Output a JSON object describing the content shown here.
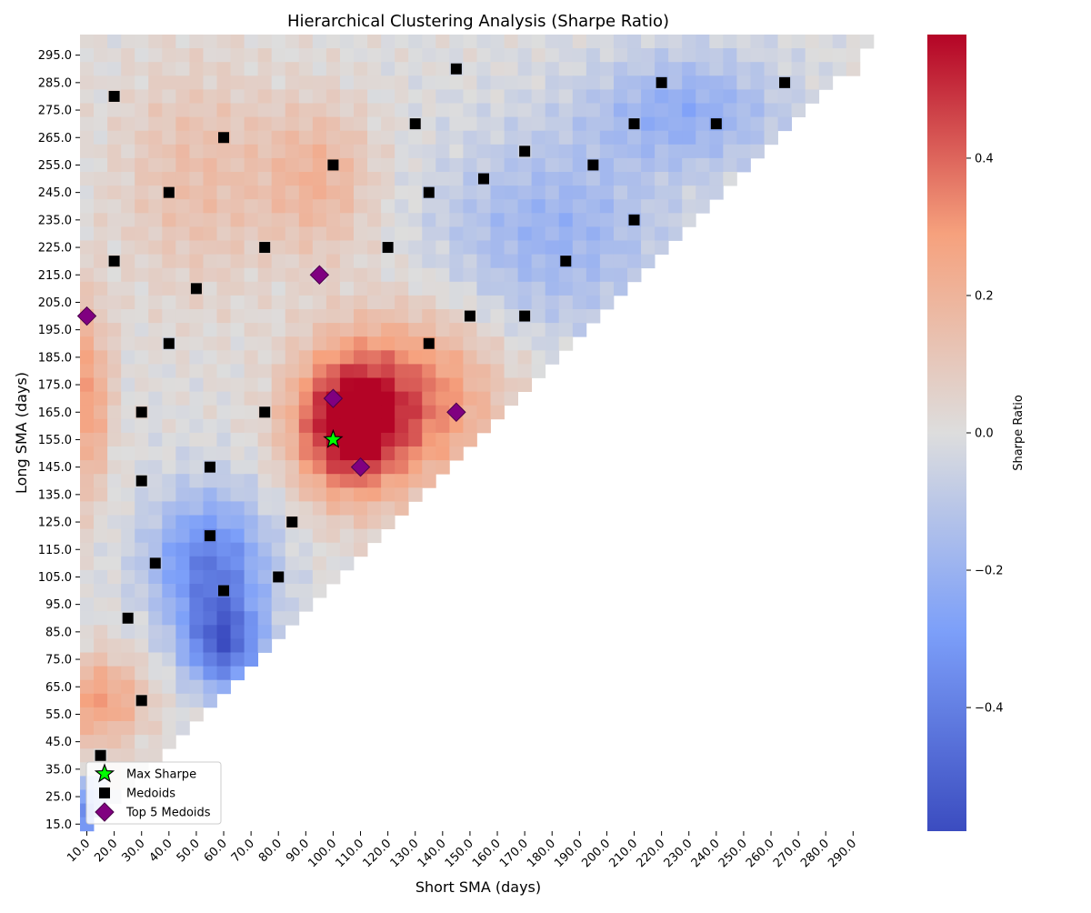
{
  "chart_data": {
    "type": "heatmap",
    "title": "Hierarchical Clustering Analysis (Sharpe Ratio)",
    "xlabel": "Short SMA (days)",
    "ylabel": "Long SMA (days)",
    "colorbar_label": "Sharpe Ratio",
    "colormap": "coolwarm",
    "color_range": [
      -0.58,
      0.58
    ],
    "colorbar_ticks": [
      "0.4",
      "0.2",
      "0.0",
      "−0.2",
      "−0.4"
    ],
    "colorbar_tick_values": [
      0.4,
      0.2,
      0.0,
      -0.2,
      -0.4
    ],
    "x_range": [
      10,
      295
    ],
    "y_range": [
      15,
      300
    ],
    "cell_size": 5,
    "x_tick_labels": [
      "10.0",
      "20.0",
      "30.0",
      "40.0",
      "50.0",
      "60.0",
      "70.0",
      "80.0",
      "90.0",
      "100.0",
      "110.0",
      "120.0",
      "130.0",
      "140.0",
      "150.0",
      "160.0",
      "170.0",
      "180.0",
      "190.0",
      "200.0",
      "210.0",
      "220.0",
      "230.0",
      "240.0",
      "250.0",
      "260.0",
      "270.0",
      "280.0",
      "290.0"
    ],
    "x_tick_values": [
      10,
      20,
      30,
      40,
      50,
      60,
      70,
      80,
      90,
      100,
      110,
      120,
      130,
      140,
      150,
      160,
      170,
      180,
      190,
      200,
      210,
      220,
      230,
      240,
      250,
      260,
      270,
      280,
      290
    ],
    "y_tick_labels": [
      "295.0",
      "285.0",
      "275.0",
      "265.0",
      "255.0",
      "245.0",
      "235.0",
      "225.0",
      "215.0",
      "205.0",
      "195.0",
      "185.0",
      "175.0",
      "165.0",
      "155.0",
      "145.0",
      "135.0",
      "125.0",
      "115.0",
      "105.0",
      "95.0",
      "85.0",
      "75.0",
      "65.0",
      "55.0",
      "45.0",
      "35.0",
      "25.0",
      "15.0"
    ],
    "y_tick_values": [
      295,
      285,
      275,
      265,
      255,
      245,
      235,
      225,
      215,
      205,
      195,
      185,
      175,
      165,
      155,
      145,
      135,
      125,
      115,
      105,
      95,
      85,
      75,
      65,
      55,
      45,
      35,
      25,
      15
    ],
    "region_note_omitted": "",
    "hotspots": [
      {
        "x": 105,
        "y": 160,
        "v": 0.55,
        "sx": 14,
        "sy": 18
      },
      {
        "x": 130,
        "y": 170,
        "v": 0.35,
        "sx": 22,
        "sy": 22
      },
      {
        "x": 10,
        "y": 170,
        "v": 0.3,
        "sx": 6,
        "sy": 25
      },
      {
        "x": 15,
        "y": 60,
        "v": 0.28,
        "sx": 12,
        "sy": 12
      },
      {
        "x": 55,
        "y": 110,
        "v": -0.4,
        "sx": 15,
        "sy": 18
      },
      {
        "x": 60,
        "y": 80,
        "v": -0.45,
        "sx": 10,
        "sy": 12
      },
      {
        "x": 180,
        "y": 230,
        "v": -0.2,
        "sx": 30,
        "sy": 25
      },
      {
        "x": 230,
        "y": 275,
        "v": -0.22,
        "sx": 25,
        "sy": 15
      },
      {
        "x": 50,
        "y": 250,
        "v": 0.15,
        "sx": 20,
        "sy": 30
      },
      {
        "x": 95,
        "y": 250,
        "v": 0.2,
        "sx": 15,
        "sy": 20
      },
      {
        "x": 10,
        "y": 20,
        "v": -0.35,
        "sx": 5,
        "sy": 8
      }
    ],
    "series": [
      {
        "name": "Max Sharpe",
        "marker": "star",
        "color": "#00ff00",
        "points": [
          {
            "x": 100,
            "y": 155
          }
        ]
      },
      {
        "name": "Medoids",
        "marker": "square",
        "color": "#000000",
        "points": [
          {
            "x": 15,
            "y": 40
          },
          {
            "x": 30,
            "y": 60
          },
          {
            "x": 25,
            "y": 90
          },
          {
            "x": 60,
            "y": 100
          },
          {
            "x": 35,
            "y": 110
          },
          {
            "x": 55,
            "y": 120
          },
          {
            "x": 30,
            "y": 140
          },
          {
            "x": 55,
            "y": 145
          },
          {
            "x": 80,
            "y": 105
          },
          {
            "x": 85,
            "y": 125
          },
          {
            "x": 30,
            "y": 165
          },
          {
            "x": 75,
            "y": 165
          },
          {
            "x": 40,
            "y": 190
          },
          {
            "x": 50,
            "y": 210
          },
          {
            "x": 20,
            "y": 220
          },
          {
            "x": 75,
            "y": 225
          },
          {
            "x": 40,
            "y": 245
          },
          {
            "x": 60,
            "y": 265
          },
          {
            "x": 20,
            "y": 280
          },
          {
            "x": 100,
            "y": 255
          },
          {
            "x": 135,
            "y": 190
          },
          {
            "x": 150,
            "y": 200
          },
          {
            "x": 120,
            "y": 225
          },
          {
            "x": 135,
            "y": 245
          },
          {
            "x": 130,
            "y": 270
          },
          {
            "x": 145,
            "y": 290
          },
          {
            "x": 155,
            "y": 250
          },
          {
            "x": 170,
            "y": 260
          },
          {
            "x": 170,
            "y": 200
          },
          {
            "x": 185,
            "y": 220
          },
          {
            "x": 195,
            "y": 255
          },
          {
            "x": 210,
            "y": 235
          },
          {
            "x": 210,
            "y": 270
          },
          {
            "x": 220,
            "y": 285
          },
          {
            "x": 240,
            "y": 270
          },
          {
            "x": 265,
            "y": 285
          }
        ]
      },
      {
        "name": "Top 5 Medoids",
        "marker": "diamond",
        "color": "#800080",
        "points": [
          {
            "x": 10,
            "y": 200
          },
          {
            "x": 95,
            "y": 215
          },
          {
            "x": 100,
            "y": 170
          },
          {
            "x": 110,
            "y": 145
          },
          {
            "x": 145,
            "y": 165
          }
        ]
      }
    ],
    "legend_location": "lower-left"
  }
}
